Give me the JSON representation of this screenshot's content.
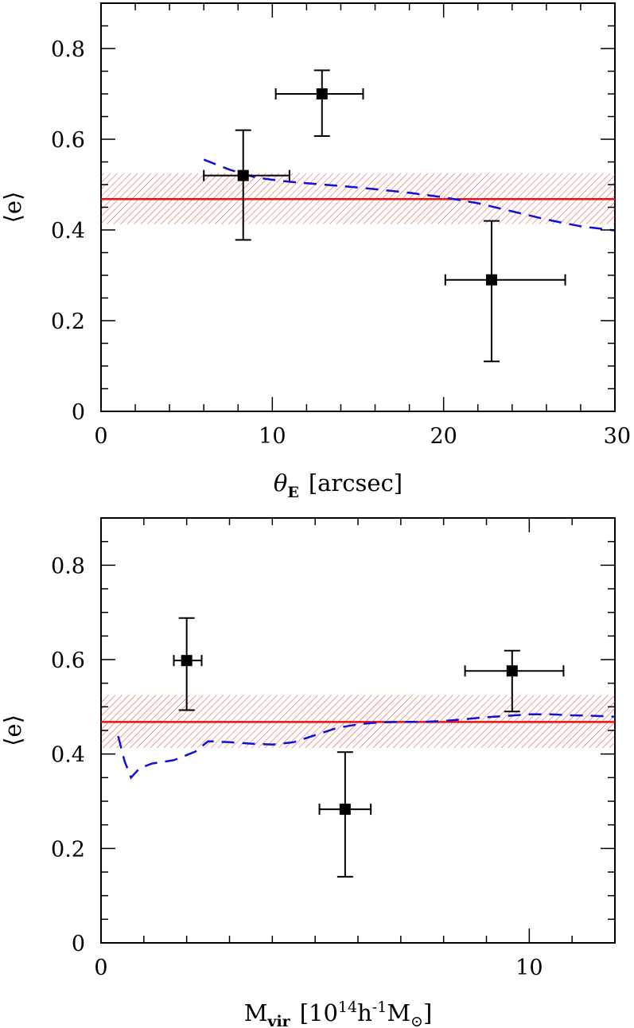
{
  "chart_data": [
    {
      "type": "scatter",
      "xlabel": "θ",
      "xlabel_sub": "E",
      "xlabel_unit": "[arcsec]",
      "ylabel": "⟨e⟩",
      "xlim": [
        0,
        30
      ],
      "ylim": [
        0,
        0.9
      ],
      "xticks": [
        0,
        10,
        20,
        30
      ],
      "xtick_labels": [
        "0",
        "10",
        "20",
        "30"
      ],
      "xminor_step": 2,
      "yticks": [
        0,
        0.2,
        0.4,
        0.6,
        0.8
      ],
      "ytick_labels": [
        "0",
        "0.2",
        "0.4",
        "0.6",
        "0.8"
      ],
      "yminor_step": 0.05,
      "grid": false,
      "colors": {
        "points": "#000000",
        "band": "#ee2222",
        "mean_line": "#ee1111",
        "model": "#1010dd"
      },
      "mean_line": {
        "y": 0.468,
        "band": [
          0.413,
          0.525
        ]
      },
      "points": [
        {
          "x": 8.3,
          "y": 0.52,
          "xerr": [
            6.0,
            11.0
          ],
          "yerr": [
            0.378,
            0.62
          ]
        },
        {
          "x": 12.9,
          "y": 0.7,
          "xerr": [
            10.2,
            15.3
          ],
          "yerr": [
            0.607,
            0.752
          ]
        },
        {
          "x": 22.8,
          "y": 0.29,
          "xerr": [
            20.1,
            27.1
          ],
          "yerr": [
            0.11,
            0.42
          ]
        }
      ],
      "model_curve": {
        "x": [
          6.0,
          7.5,
          9.0,
          10.5,
          12,
          14,
          16,
          18,
          20,
          22,
          24,
          26,
          28,
          30
        ],
        "y": [
          0.555,
          0.533,
          0.516,
          0.508,
          0.503,
          0.497,
          0.49,
          0.482,
          0.472,
          0.459,
          0.441,
          0.423,
          0.408,
          0.399
        ]
      }
    },
    {
      "type": "scatter",
      "xlabel": "M",
      "xlabel_sub": "vir",
      "xlabel_unit_prefix": "[10",
      "xlabel_unit_sup1": "14",
      "xlabel_unit_mid": "h",
      "xlabel_unit_sup2": "-1",
      "xlabel_unit_suffix": "M",
      "xlabel_unit_sub": "⊙",
      "xlabel_unit_close": "]",
      "ylabel": "⟨e⟩",
      "xlim": [
        0,
        12
      ],
      "ylim": [
        0,
        0.9
      ],
      "xticks": [
        0,
        10
      ],
      "xtick_labels": [
        "0",
        "10"
      ],
      "xminor_step": 1,
      "yticks": [
        0,
        0.2,
        0.4,
        0.6,
        0.8
      ],
      "ytick_labels": [
        "0",
        "0.2",
        "0.4",
        "0.6",
        "0.8"
      ],
      "yminor_step": 0.05,
      "grid": false,
      "colors": {
        "points": "#000000",
        "band": "#ee2222",
        "mean_line": "#ee1111",
        "model": "#1010dd"
      },
      "mean_line": {
        "y": 0.468,
        "band": [
          0.413,
          0.525
        ]
      },
      "points": [
        {
          "x": 2.0,
          "y": 0.598,
          "xerr": [
            1.7,
            2.35
          ],
          "yerr": [
            0.493,
            0.688
          ]
        },
        {
          "x": 5.7,
          "y": 0.283,
          "xerr": [
            5.1,
            6.3
          ],
          "yerr": [
            0.14,
            0.404
          ]
        },
        {
          "x": 9.6,
          "y": 0.576,
          "xerr": [
            8.5,
            10.8
          ],
          "yerr": [
            0.49,
            0.619
          ]
        }
      ],
      "model_curve": {
        "x": [
          0.4,
          0.55,
          0.7,
          0.9,
          1.2,
          1.7,
          2.2,
          2.5,
          3.0,
          3.5,
          4.0,
          4.5,
          5.0,
          5.5,
          6.0,
          6.5,
          7.0,
          7.5,
          8.0,
          8.5,
          9.0,
          9.5,
          10.0,
          10.5,
          11.0,
          11.5,
          12.0
        ],
        "y": [
          0.438,
          0.385,
          0.35,
          0.37,
          0.38,
          0.387,
          0.405,
          0.427,
          0.425,
          0.422,
          0.42,
          0.425,
          0.44,
          0.455,
          0.463,
          0.467,
          0.468,
          0.468,
          0.47,
          0.474,
          0.478,
          0.481,
          0.484,
          0.484,
          0.482,
          0.481,
          0.479
        ]
      }
    }
  ]
}
